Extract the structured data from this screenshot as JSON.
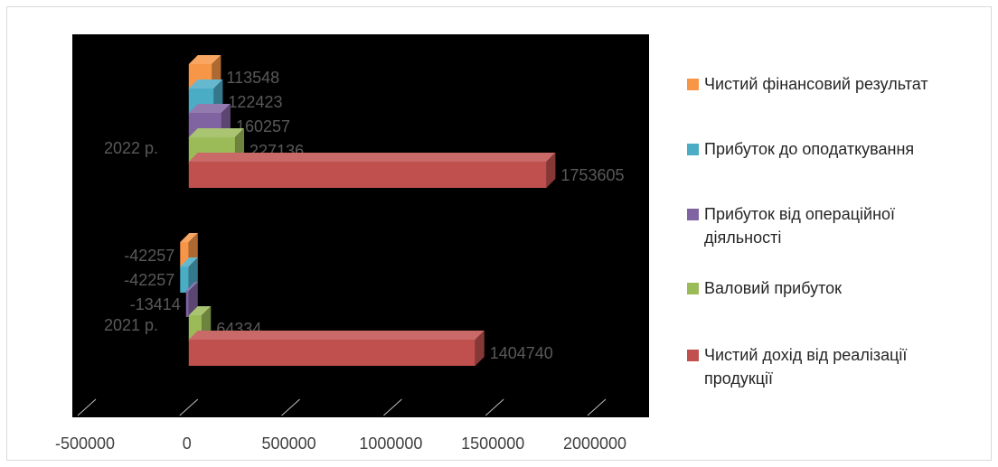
{
  "chart_data": {
    "type": "bar",
    "orientation": "horizontal",
    "style": "3d-clustered",
    "categories": [
      "2021 р.",
      "2022 р."
    ],
    "series": [
      {
        "name": "Чистий дохід від реалізації продукції",
        "values": [
          1404740,
          1753605
        ],
        "labels": [
          "1404740",
          "1753605"
        ],
        "color": "#c0504d"
      },
      {
        "name": "Валовий прибуток",
        "values": [
          64334,
          227136
        ],
        "labels": [
          "64334",
          "227136"
        ],
        "color": "#9bbb59"
      },
      {
        "name": "Прибуток  від операційної діяльності",
        "values": [
          -13414,
          160257
        ],
        "labels": [
          "-13414",
          "160257"
        ],
        "color": "#8064a2"
      },
      {
        "name": "Прибуток до оподаткування",
        "values": [
          -42257,
          122423
        ],
        "labels": [
          "-42257",
          "122423"
        ],
        "color": "#4bacc6"
      },
      {
        "name": "Чистий фінансовий результат",
        "values": [
          -42257,
          113548
        ],
        "labels": [
          "-42257",
          "113548"
        ],
        "color": "#f79646"
      }
    ],
    "xlim": [
      -500000,
      2000000
    ],
    "x_ticks": [
      "-500000",
      "0",
      "500000",
      "1000000",
      "1500000",
      "2000000"
    ],
    "plot_background": "#000000",
    "data_label_color": "#595959",
    "legend_position": "right",
    "legend_order": [
      4,
      3,
      2,
      1,
      0
    ]
  }
}
